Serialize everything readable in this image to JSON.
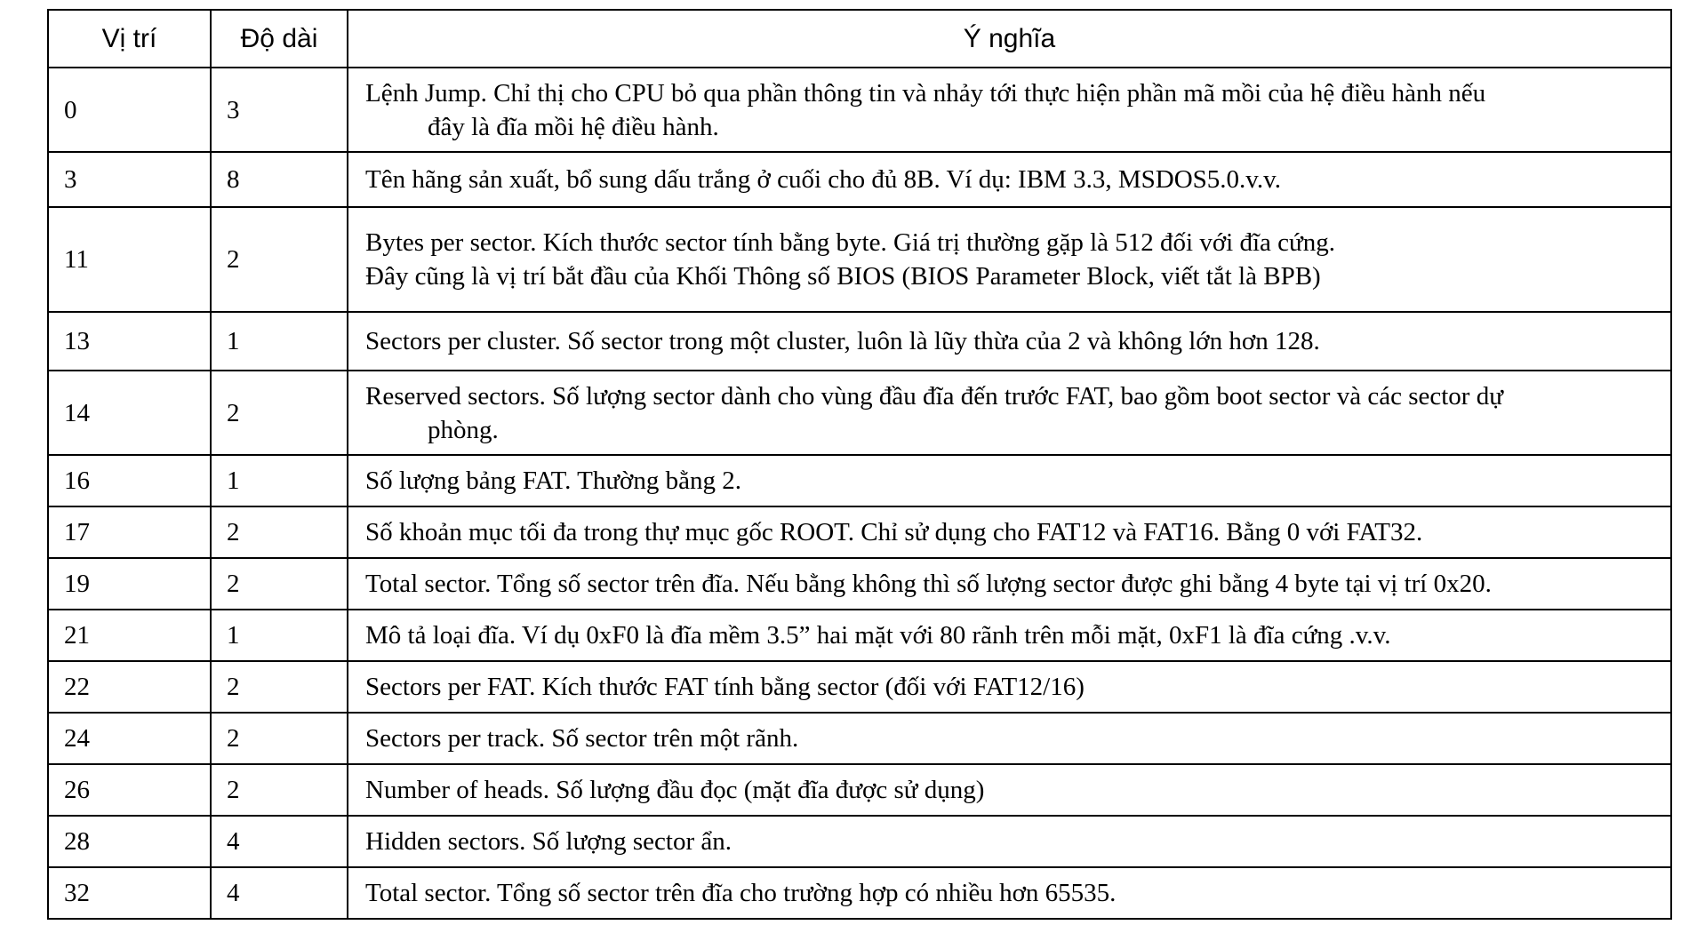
{
  "table": {
    "headers": {
      "position": "Vị trí",
      "length": "Độ dài",
      "meaning": "Ý nghĩa"
    },
    "rows": [
      {
        "position": "0",
        "length": "3",
        "meaning_line1": "Lệnh Jump. Chỉ thị cho CPU bỏ qua phần thông tin và nhảy tới thực hiện phần mã mồi của hệ điều hành nếu",
        "meaning_line2": "đây là đĩa mồi hệ điều hành."
      },
      {
        "position": "3",
        "length": "8",
        "meaning_line1": "Tên hãng sản xuất, bổ sung dấu trắng ở cuối cho đủ 8B. Ví dụ: IBM  3.3, MSDOS5.0.v.v.",
        "meaning_line2": ""
      },
      {
        "position": "11",
        "length": "2",
        "meaning_line1": "Bytes per sector. Kích thước sector tính bằng byte. Giá trị thường gặp là 512 đối với đĩa cứng.",
        "meaning_line2": "Đây cũng là vị trí bắt đầu của Khối Thông số BIOS (BIOS Parameter Block, viết tắt là BPB)"
      },
      {
        "position": "13",
        "length": "1",
        "meaning_line1": "Sectors per cluster. Số sector trong một cluster, luôn là lũy thừa của 2 và không lớn hơn 128.",
        "meaning_line2": ""
      },
      {
        "position": "14",
        "length": "2",
        "meaning_line1": "Reserved sectors. Số lượng sector dành cho vùng đầu đĩa đến trước FAT, bao gồm boot sector và các sector dự",
        "meaning_line2": "phòng."
      },
      {
        "position": "16",
        "length": "1",
        "meaning_line1": "Số lượng bảng FAT. Thường bằng 2.",
        "meaning_line2": ""
      },
      {
        "position": "17",
        "length": "2",
        "meaning_line1": "Số khoản mục tối đa trong thự mục gốc ROOT. Chỉ sử dụng cho FAT12 và FAT16. Bằng 0 với FAT32.",
        "meaning_line2": ""
      },
      {
        "position": "19",
        "length": "2",
        "meaning_line1": "Total sector. Tổng số sector trên đĩa. Nếu bằng không thì số lượng sector được ghi bằng 4 byte tại vị trí 0x20.",
        "meaning_line2": ""
      },
      {
        "position": "21",
        "length": "1",
        "meaning_line1": "Mô tả loại đĩa. Ví dụ 0xF0 là đĩa mềm 3.5” hai mặt với 80 rãnh trên mỗi mặt, 0xF1 là đĩa cứng .v.v.",
        "meaning_line2": ""
      },
      {
        "position": "22",
        "length": "2",
        "meaning_line1": "Sectors per FAT. Kích thước FAT tính bằng sector (đối với FAT12/16)",
        "meaning_line2": ""
      },
      {
        "position": "24",
        "length": "2",
        "meaning_line1": "Sectors per track. Số sector trên một rãnh.",
        "meaning_line2": ""
      },
      {
        "position": "26",
        "length": "2",
        "meaning_line1": "Number of heads. Số lượng đầu đọc (mặt đĩa được sử dụng)",
        "meaning_line2": ""
      },
      {
        "position": "28",
        "length": "4",
        "meaning_line1": "Hidden sectors. Số lượng sector ẩn.",
        "meaning_line2": ""
      },
      {
        "position": "32",
        "length": "4",
        "meaning_line1": "Total sector. Tổng số sector trên đĩa cho trường hợp có nhiều hơn 65535.",
        "meaning_line2": ""
      }
    ]
  }
}
